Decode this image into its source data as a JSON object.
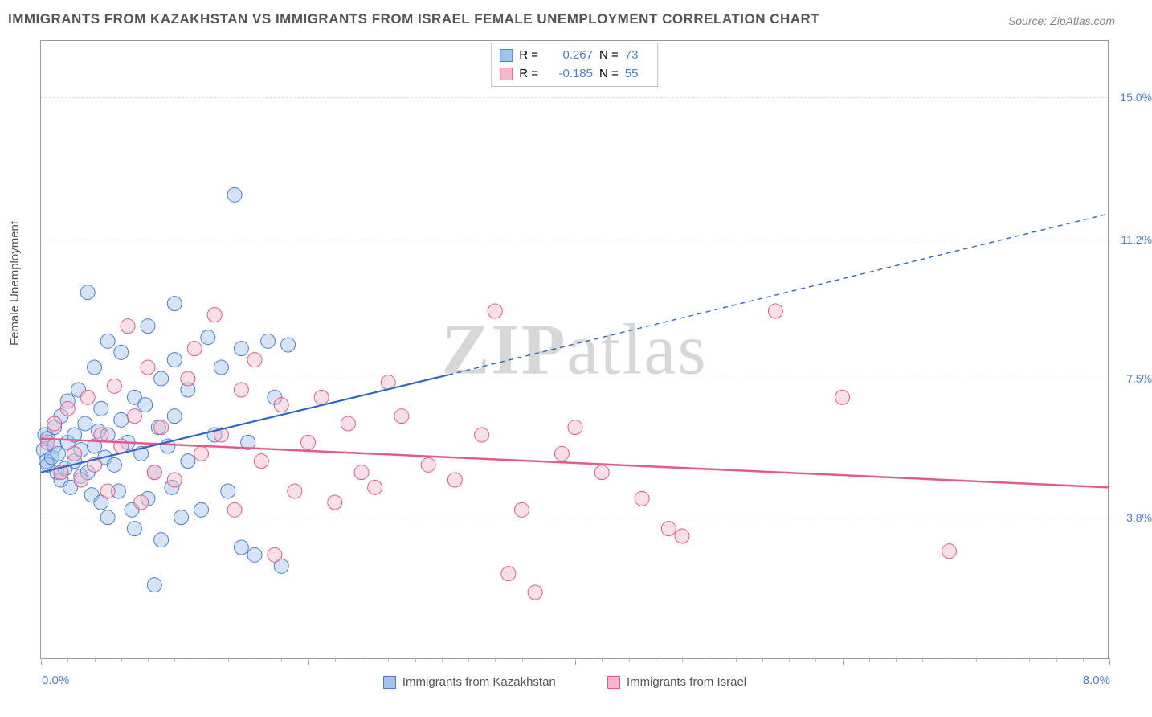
{
  "title": "IMMIGRANTS FROM KAZAKHSTAN VS IMMIGRANTS FROM ISRAEL FEMALE UNEMPLOYMENT CORRELATION CHART",
  "source": "Source: ZipAtlas.com",
  "ylabel": "Female Unemployment",
  "watermark_prefix": "ZIP",
  "watermark_suffix": "atlas",
  "chart": {
    "type": "scatter",
    "background_color": "#ffffff",
    "grid_color": "#dddddd",
    "frame_color": "#999999",
    "xlim": [
      0,
      8
    ],
    "ylim": [
      0,
      16.5
    ],
    "x_min_label": "0.0%",
    "x_max_label": "8.0%",
    "x_major_ticks": [
      0,
      2,
      4,
      6,
      8
    ],
    "x_minor_step": 0.2,
    "y_gridlines": [
      3.8,
      7.5,
      11.2,
      15.0
    ],
    "y_tick_labels": [
      "3.8%",
      "7.5%",
      "11.2%",
      "15.0%"
    ],
    "marker_radius": 9,
    "marker_opacity": 0.45,
    "label_fontsize": 15,
    "tick_color": "#4a7fd6"
  },
  "series": {
    "kazakhstan": {
      "label": "Immigrants from Kazakhstan",
      "fill": "#9fc4ec",
      "stroke": "#4a7fd6",
      "line_color": "#2f66c4",
      "line_width": 2.2,
      "R": "0.267",
      "N": "73",
      "trend_solid": {
        "x1": 0,
        "y1": 5.0,
        "x2": 3.05,
        "y2": 7.6
      },
      "trend_dashed": {
        "x1": 3.05,
        "y1": 7.6,
        "x2": 8.0,
        "y2": 11.9
      },
      "points": [
        [
          0.02,
          5.6
        ],
        [
          0.03,
          6.0
        ],
        [
          0.04,
          5.3
        ],
        [
          0.05,
          5.2
        ],
        [
          0.05,
          5.9
        ],
        [
          0.08,
          5.4
        ],
        [
          0.1,
          5.7
        ],
        [
          0.1,
          6.2
        ],
        [
          0.12,
          5.0
        ],
        [
          0.13,
          5.5
        ],
        [
          0.15,
          4.8
        ],
        [
          0.15,
          6.5
        ],
        [
          0.18,
          5.1
        ],
        [
          0.2,
          5.8
        ],
        [
          0.2,
          6.9
        ],
        [
          0.22,
          4.6
        ],
        [
          0.25,
          5.3
        ],
        [
          0.25,
          6.0
        ],
        [
          0.28,
          7.2
        ],
        [
          0.3,
          4.9
        ],
        [
          0.3,
          5.6
        ],
        [
          0.33,
          6.3
        ],
        [
          0.35,
          5.0
        ],
        [
          0.38,
          4.4
        ],
        [
          0.4,
          5.7
        ],
        [
          0.4,
          7.8
        ],
        [
          0.43,
          6.1
        ],
        [
          0.45,
          4.2
        ],
        [
          0.45,
          6.7
        ],
        [
          0.48,
          5.4
        ],
        [
          0.5,
          3.8
        ],
        [
          0.5,
          6.0
        ],
        [
          0.35,
          9.8
        ],
        [
          0.5,
          8.5
        ],
        [
          0.55,
          5.2
        ],
        [
          0.58,
          4.5
        ],
        [
          0.6,
          6.4
        ],
        [
          0.6,
          8.2
        ],
        [
          0.65,
          5.8
        ],
        [
          0.68,
          4.0
        ],
        [
          0.7,
          7.0
        ],
        [
          0.7,
          3.5
        ],
        [
          0.75,
          5.5
        ],
        [
          0.78,
          6.8
        ],
        [
          0.8,
          4.3
        ],
        [
          0.8,
          8.9
        ],
        [
          0.85,
          5.0
        ],
        [
          0.88,
          6.2
        ],
        [
          0.9,
          3.2
        ],
        [
          0.9,
          7.5
        ],
        [
          0.95,
          5.7
        ],
        [
          0.98,
          4.6
        ],
        [
          1.0,
          8.0
        ],
        [
          1.0,
          6.5
        ],
        [
          1.05,
          3.8
        ],
        [
          1.1,
          7.2
        ],
        [
          1.1,
          5.3
        ],
        [
          1.2,
          4.0
        ],
        [
          1.25,
          8.6
        ],
        [
          1.3,
          6.0
        ],
        [
          1.35,
          7.8
        ],
        [
          1.4,
          4.5
        ],
        [
          1.45,
          12.4
        ],
        [
          1.5,
          3.0
        ],
        [
          1.5,
          8.3
        ],
        [
          1.55,
          5.8
        ],
        [
          1.6,
          2.8
        ],
        [
          1.7,
          8.5
        ],
        [
          1.75,
          7.0
        ],
        [
          1.8,
          2.5
        ],
        [
          1.85,
          8.4
        ],
        [
          0.85,
          2.0
        ],
        [
          1.0,
          9.5
        ]
      ]
    },
    "israel": {
      "label": "Immigrants from Israel",
      "fill": "#f6b7c8",
      "stroke": "#e65a8a",
      "line_color": "#e65a8a",
      "line_width": 2.5,
      "R": "-0.185",
      "N": "55",
      "trend_solid": {
        "x1": 0,
        "y1": 5.9,
        "x2": 8.0,
        "y2": 4.6
      },
      "points": [
        [
          0.05,
          5.8
        ],
        [
          0.1,
          6.3
        ],
        [
          0.15,
          5.0
        ],
        [
          0.2,
          6.7
        ],
        [
          0.25,
          5.5
        ],
        [
          0.3,
          4.8
        ],
        [
          0.35,
          7.0
        ],
        [
          0.4,
          5.2
        ],
        [
          0.45,
          6.0
        ],
        [
          0.5,
          4.5
        ],
        [
          0.55,
          7.3
        ],
        [
          0.6,
          5.7
        ],
        [
          0.7,
          6.5
        ],
        [
          0.75,
          4.2
        ],
        [
          0.8,
          7.8
        ],
        [
          0.85,
          5.0
        ],
        [
          0.9,
          6.2
        ],
        [
          1.0,
          4.8
        ],
        [
          1.1,
          7.5
        ],
        [
          1.2,
          5.5
        ],
        [
          1.3,
          9.2
        ],
        [
          1.35,
          6.0
        ],
        [
          1.45,
          4.0
        ],
        [
          1.5,
          7.2
        ],
        [
          1.6,
          8.0
        ],
        [
          1.65,
          5.3
        ],
        [
          1.75,
          2.8
        ],
        [
          1.8,
          6.8
        ],
        [
          1.9,
          4.5
        ],
        [
          2.0,
          5.8
        ],
        [
          2.1,
          7.0
        ],
        [
          2.2,
          4.2
        ],
        [
          2.3,
          6.3
        ],
        [
          2.4,
          5.0
        ],
        [
          2.5,
          4.6
        ],
        [
          2.7,
          6.5
        ],
        [
          2.9,
          5.2
        ],
        [
          3.1,
          4.8
        ],
        [
          3.3,
          6.0
        ],
        [
          3.4,
          9.3
        ],
        [
          3.5,
          2.3
        ],
        [
          3.6,
          4.0
        ],
        [
          3.7,
          1.8
        ],
        [
          3.9,
          5.5
        ],
        [
          4.2,
          5.0
        ],
        [
          4.5,
          4.3
        ],
        [
          4.7,
          3.5
        ],
        [
          4.8,
          3.3
        ],
        [
          5.5,
          9.3
        ],
        [
          6.0,
          7.0
        ],
        [
          6.8,
          2.9
        ],
        [
          4.0,
          6.2
        ],
        [
          2.6,
          7.4
        ],
        [
          1.15,
          8.3
        ],
        [
          0.65,
          8.9
        ]
      ]
    }
  },
  "legend_top": {
    "r_label": "R =",
    "n_label": "N ="
  }
}
